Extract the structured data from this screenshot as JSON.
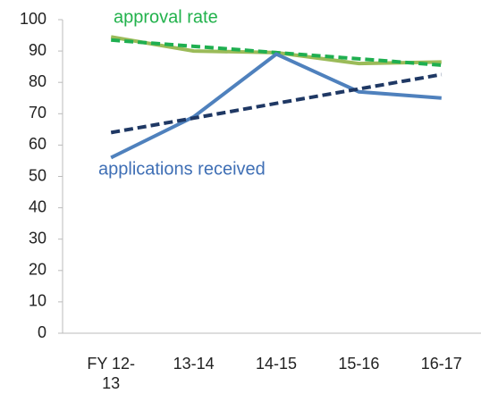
{
  "chart_data": {
    "type": "line",
    "categories": [
      "FY 12-13",
      "13-14",
      "14-15",
      "15-16",
      "16-17"
    ],
    "series": [
      {
        "name": "approval rate",
        "color": "#9bbb59",
        "dash": false,
        "values": [
          94.5,
          90,
          89.5,
          86,
          86.5
        ]
      },
      {
        "color": "#1faf50",
        "dash": true,
        "values": [
          93.5,
          91.5,
          89.5,
          87.5,
          85.5
        ]
      },
      {
        "name": "applications received",
        "color": "#4f81bd",
        "dash": false,
        "values": [
          56,
          69,
          89,
          77,
          75
        ]
      },
      {
        "color": "#1f3864",
        "dash": true,
        "values": [
          64,
          68.6,
          73.3,
          77.9,
          82.5
        ]
      }
    ],
    "annotation_colors": [
      "#22b24c",
      "#3f6fb5"
    ],
    "ylim": [
      0,
      100
    ],
    "yticks": [
      0,
      10,
      20,
      30,
      40,
      50,
      60,
      70,
      80,
      90,
      100
    ],
    "grid": false
  }
}
